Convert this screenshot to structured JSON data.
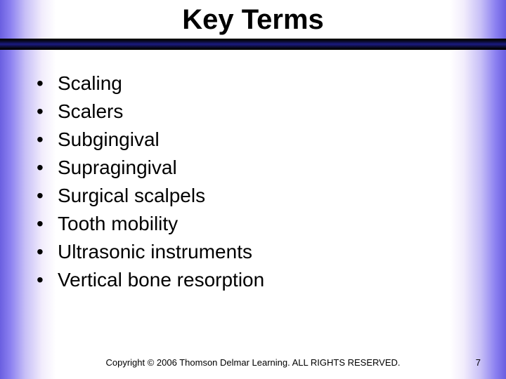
{
  "title": "Key Terms",
  "terms": [
    "Scaling",
    "Scalers",
    "Subgingival",
    "Supragingival",
    "Surgical scalpels",
    "Tooth mobility",
    "Ultrasonic instruments",
    "Vertical bone resorption"
  ],
  "copyright": "Copyright © 2006 Thomson Delmar Learning. ALL RIGHTS RESERVED.",
  "page_number": "7",
  "style": {
    "type": "infographic",
    "background_color": "#ffffff",
    "side_glow_colors": [
      "#6a5fe0",
      "#8a7ff0",
      "#c7bff7",
      "#f2edfc",
      "#ffffff"
    ],
    "rule_gradient": [
      "#000000",
      "#0a0a2a",
      "#1a1a80",
      "#0a0a2a",
      "#000000"
    ],
    "title_fontsize": 40,
    "title_color": "#000000",
    "term_fontsize": 28,
    "term_lineheight": 40,
    "term_color": "#000000",
    "bullet_char": "•",
    "footer_fontsize": 13,
    "footer_color": "#000000",
    "font_family": "Arial"
  }
}
